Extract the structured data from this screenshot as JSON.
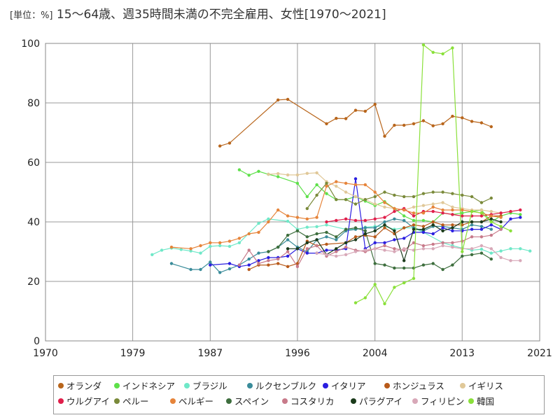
{
  "chart_data": {
    "type": "line",
    "title": "15～64歳、週35時間未満の不完全雇用、女性[1970～2021]",
    "unit": "[単位：%]",
    "xlim": [
      1970,
      2021
    ],
    "ylim": [
      0,
      100
    ],
    "xticks": [
      "1970",
      "1979",
      "1987",
      "1996",
      "2004",
      "2013",
      "2021"
    ],
    "yticks": [
      "0",
      "20",
      "40",
      "60",
      "80",
      "100"
    ],
    "grid": true,
    "legend_position": "bottom",
    "series": [
      {
        "name": "オランダ",
        "color": "#b8651b",
        "x": [
          1988,
          1989,
          1994,
          1995,
          1999,
          2000,
          2001,
          2002,
          2003,
          2004,
          2005,
          2006,
          2007,
          2008,
          2009,
          2010,
          2011,
          2012,
          2013,
          2014,
          2015,
          2016
        ],
        "y": [
          65.5,
          66.5,
          81,
          81.2,
          73,
          74.8,
          74.7,
          77.5,
          77.2,
          79.5,
          68.8,
          72.5,
          72.5,
          73,
          74,
          72.3,
          73,
          75.5,
          75,
          73.8,
          73.3,
          72
        ]
      },
      {
        "name": "インドネシア",
        "color": "#5ee04a",
        "x": [
          1990,
          1991,
          1992,
          1993,
          1994,
          1996,
          1997,
          1998,
          1999,
          2000,
          2001,
          2002,
          2003,
          2004,
          2005,
          2006,
          2007,
          2008,
          2009,
          2010,
          2011,
          2012,
          2013,
          2014,
          2015,
          2016,
          2017,
          2018,
          2019
        ],
        "y": [
          57.5,
          55.7,
          57,
          56,
          55.2,
          53,
          48.5,
          52.5,
          49.5,
          47.5,
          47.5,
          48.5,
          47,
          45.5,
          46.8,
          44.5,
          42,
          40.5,
          40.5,
          40,
          43,
          42.5,
          43,
          43.5,
          44,
          40,
          42,
          43,
          42.5
        ]
      },
      {
        "name": "ブラジル",
        "color": "#6fe8c8",
        "x": [
          1981,
          1982,
          1983,
          1984,
          1985,
          1986,
          1987,
          1988,
          1989,
          1990,
          1992,
          1993,
          1995,
          1996,
          1997,
          1998,
          1999,
          2001,
          2002,
          2003,
          2004,
          2005,
          2006,
          2007,
          2008,
          2009,
          2011,
          2012,
          2013,
          2014,
          2015,
          2016,
          2017,
          2018,
          2019,
          2020
        ],
        "y": [
          29,
          30.5,
          31.2,
          30.7,
          30.2,
          29.5,
          31.8,
          32,
          31.8,
          33,
          39.5,
          41,
          40.2,
          37.5,
          38.2,
          38.4,
          39,
          37.5,
          37.5,
          38.2,
          38.5,
          38.5,
          37.5,
          38,
          38,
          36.5,
          33,
          32,
          31.2,
          30.5,
          30.8,
          29.5,
          30.2,
          31,
          31,
          30.2
        ]
      },
      {
        "name": "ルクセンブルク",
        "color": "#3a8c9a",
        "x": [
          1983,
          1985,
          1986,
          1987,
          1988,
          1989,
          1990,
          1991,
          1992,
          1993,
          1994,
          1995,
          1996,
          1997,
          1998,
          1999,
          2000,
          2001,
          2002,
          2003,
          2004,
          2005,
          2006,
          2007,
          2008,
          2009,
          2010,
          2011,
          2012,
          2013,
          2014,
          2015,
          2016
        ],
        "y": [
          26,
          24,
          24,
          26.5,
          23,
          24.2,
          25.5,
          27.5,
          29.5,
          30,
          31.5,
          34,
          31.5,
          30,
          34,
          35,
          34,
          37,
          37.5,
          38,
          38,
          40,
          41,
          40.5,
          38,
          37,
          38.5,
          38.5,
          38,
          37.5,
          39,
          38.5,
          37.5
        ]
      },
      {
        "name": "イタリア",
        "color": "#2a1ee0",
        "x": [
          1987,
          1989,
          1990,
          1991,
          1992,
          1993,
          1994,
          1995,
          1996,
          1997,
          1998,
          1999,
          2000,
          2001,
          2002,
          2003,
          2004,
          2005,
          2006,
          2007,
          2008,
          2009,
          2010,
          2011,
          2012,
          2013,
          2014,
          2015,
          2016,
          2017,
          2018,
          2019
        ],
        "y": [
          25.5,
          26,
          25,
          25.5,
          27,
          28,
          28,
          28.5,
          31,
          29.5,
          29.5,
          30.5,
          30.5,
          31,
          54.5,
          31,
          33,
          33,
          34,
          34.5,
          36.5,
          36.5,
          36,
          38,
          37,
          37,
          37.5,
          37.5,
          39,
          37.5,
          41,
          41.5
        ]
      },
      {
        "name": "ホンジュラス",
        "color": "#b85a1a",
        "x": [
          1991,
          1992,
          1993,
          1994,
          1995,
          1996,
          1997,
          1998,
          1999,
          2001,
          2002,
          2003,
          2004,
          2005,
          2006,
          2007,
          2008,
          2009,
          2010,
          2011,
          2012,
          2013,
          2014,
          2015,
          2016,
          2017
        ],
        "y": [
          24,
          25.5,
          25.5,
          26,
          25,
          26,
          33.5,
          32,
          32.5,
          33,
          35,
          35.5,
          35,
          38,
          36,
          38,
          39,
          38.5,
          40,
          39,
          39,
          39,
          40,
          40,
          42,
          42
        ]
      },
      {
        "name": "イギリス",
        "color": "#e0c898",
        "x": [
          1993,
          1994,
          1995,
          1996,
          1997,
          1998,
          1999,
          2000,
          2001,
          2002,
          2003,
          2004,
          2005,
          2006,
          2007,
          2008,
          2009,
          2010,
          2011,
          2012,
          2013,
          2014,
          2015,
          2016,
          2017
        ],
        "y": [
          56,
          56.2,
          55.8,
          55.8,
          56.3,
          56.5,
          53.5,
          52,
          50,
          48.5,
          47.5,
          46,
          45,
          44.5,
          44,
          45,
          45.5,
          46,
          46.5,
          45,
          44.5,
          44,
          44,
          43.5,
          43
        ]
      },
      {
        "name": "ウルグアイ",
        "color": "#e01e4a",
        "x": [
          1999,
          2000,
          2001,
          2002,
          2003,
          2004,
          2005,
          2006,
          2007,
          2008,
          2009,
          2010,
          2011,
          2012,
          2013,
          2014,
          2015,
          2016,
          2017,
          2018,
          2019
        ],
        "y": [
          40,
          40.5,
          41,
          40.5,
          40.5,
          41,
          41.5,
          43.5,
          44.5,
          42,
          43.5,
          43.5,
          43,
          42.5,
          42,
          42,
          42,
          42.5,
          43,
          43.5,
          44
        ]
      },
      {
        "name": "ペルー",
        "color": "#7a8a3a",
        "x": [
          1997,
          1998,
          1999,
          2000,
          2001,
          2002,
          2003,
          2004,
          2005,
          2006,
          2007,
          2008,
          2009,
          2010,
          2011,
          2012,
          2013,
          2014,
          2015,
          2016
        ],
        "y": [
          44.5,
          49,
          53,
          47.5,
          47.5,
          46,
          47.5,
          48.5,
          50,
          49,
          48.5,
          48.5,
          49.5,
          50,
          50,
          49.5,
          49,
          48.5,
          46.5,
          48
        ]
      },
      {
        "name": "ベルギー",
        "color": "#e6843a",
        "x": [
          1983,
          1985,
          1986,
          1987,
          1988,
          1989,
          1990,
          1991,
          1992,
          1993,
          1994,
          1995,
          1996,
          1997,
          1998,
          1999,
          2000,
          2001,
          2002,
          2003,
          2004,
          2005,
          2006,
          2007,
          2008,
          2009,
          2010,
          2011,
          2012,
          2013,
          2014,
          2015,
          2016,
          2017
        ],
        "y": [
          31.5,
          31,
          32,
          33,
          33,
          33.5,
          34.5,
          36,
          36.5,
          40,
          44,
          42,
          41.5,
          41,
          41.5,
          52,
          53.5,
          53,
          52.5,
          52.5,
          50,
          46.5,
          44.5,
          44,
          43,
          43,
          45,
          44,
          44,
          44,
          43.5,
          43,
          42,
          41.5
        ]
      },
      {
        "name": "スペイン",
        "color": "#3d6e3d",
        "x": [
          1993,
          1994,
          1995,
          1996,
          1997,
          1998,
          1999,
          2000,
          2001,
          2002,
          2003,
          2004,
          2005,
          2006,
          2007,
          2008,
          2009,
          2010,
          2011,
          2012,
          2013,
          2014,
          2015,
          2016
        ],
        "y": [
          30,
          31.5,
          35.5,
          37,
          35,
          36,
          36.5,
          35,
          37.5,
          38,
          37,
          26,
          25.5,
          24.5,
          24.5,
          24.5,
          25.5,
          26,
          24,
          25.5,
          28.5,
          29,
          29.5,
          27.5
        ]
      },
      {
        "name": "コスタリカ",
        "color": "#c87a8a",
        "x": [
          1990,
          1991,
          1992,
          1993,
          1994,
          1995,
          1996,
          1997,
          1998,
          1999,
          2000,
          2001,
          2002,
          2003,
          2004,
          2005,
          2006,
          2007,
          2008,
          2009,
          2010,
          2011,
          2012,
          2013,
          2014,
          2015,
          2016,
          2017
        ],
        "y": [
          25.5,
          30.5,
          26,
          27,
          27.5,
          30,
          25,
          31,
          32,
          28.5,
          30,
          31.5,
          30.5,
          30,
          31,
          32,
          31,
          30.5,
          33,
          32,
          32.5,
          33,
          33,
          33.5,
          35,
          35,
          35.5,
          37.5
        ]
      },
      {
        "name": "パラグアイ",
        "color": "#1a3a1a",
        "x": [
          1995,
          1996,
          1997,
          1998,
          1999,
          2000,
          2001,
          2002,
          2003,
          2004,
          2005,
          2006,
          2007,
          2008,
          2009,
          2010,
          2011,
          2012,
          2013,
          2014,
          2015,
          2016,
          2017
        ],
        "y": [
          31,
          31,
          33,
          34,
          29,
          31,
          33,
          34,
          36,
          37,
          39,
          37,
          27,
          37.5,
          37.5,
          39,
          37,
          38,
          40,
          40,
          40,
          41,
          40
        ]
      },
      {
        "name": "フィリピン",
        "color": "#d8a8b8",
        "x": [
          1998,
          1999,
          2000,
          2001,
          2002,
          2003,
          2004,
          2005,
          2006,
          2007,
          2008,
          2009,
          2010,
          2011,
          2012,
          2013,
          2014,
          2015,
          2016,
          2017,
          2018,
          2019
        ],
        "y": [
          29.5,
          29,
          28.5,
          29,
          30,
          30.5,
          31,
          30.5,
          30,
          31,
          30.5,
          31,
          31,
          32,
          31.5,
          31,
          31,
          32,
          31,
          28,
          27,
          27
        ]
      },
      {
        "name": "韓国",
        "color": "#8ae03a",
        "x": [
          2002,
          2003,
          2004,
          2005,
          2006,
          2007,
          2008,
          2009,
          2010,
          2011,
          2012,
          2013,
          2014,
          2015,
          2016,
          2017,
          2018
        ],
        "y": [
          12.8,
          14.5,
          19,
          12.5,
          18,
          19.5,
          21,
          99.5,
          97,
          96.5,
          98.5,
          30,
          43.5,
          43,
          40,
          38.5,
          37
        ]
      }
    ]
  }
}
